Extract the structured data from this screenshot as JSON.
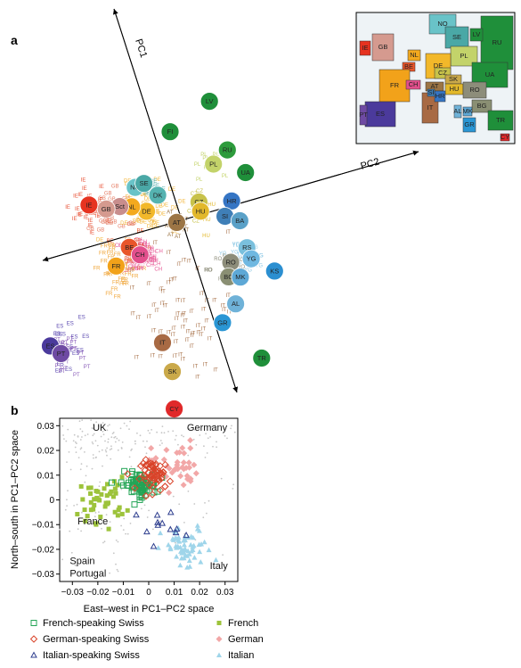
{
  "panels": {
    "a_letter": "a",
    "b_letter": "b"
  },
  "colors": {
    "french": "#9dc33b",
    "german": "#f2a7a7",
    "italian": "#9fd5ea",
    "french_swiss": "#23a455",
    "german_swiss": "#d9442a",
    "italian_swiss": "#2f3f8f",
    "uk": "#b5b5b5",
    "spain_portugal": "#b5b5b5"
  },
  "chart_data": [
    {
      "type": "scatter",
      "title": "",
      "axes": [
        {
          "label": "PC1"
        },
        {
          "label": "PC2"
        }
      ],
      "countries": [
        {
          "code": "LV",
          "color": "#1f8f3a",
          "pos": [
            20,
            -40
          ]
        },
        {
          "code": "FI",
          "color": "#1f8f3a",
          "pos": [
            1,
            -30
          ]
        },
        {
          "code": "RU",
          "color": "#2d9b3c",
          "pos": [
            24,
            -18
          ]
        },
        {
          "code": "PL",
          "color": "#c3d36a",
          "pos": [
            17,
            -13
          ]
        },
        {
          "code": "UA",
          "color": "#1f8f3a",
          "pos": [
            30,
            -7
          ]
        },
        {
          "code": "NO",
          "color": "#69c3c8",
          "pos": [
            -18,
            -9
          ]
        },
        {
          "code": "SE",
          "color": "#4aa8a6",
          "pos": [
            -14,
            -10
          ]
        },
        {
          "code": "DK",
          "color": "#55b3b0",
          "pos": [
            -9,
            -4
          ]
        },
        {
          "code": "CZ",
          "color": "#c8c24a",
          "pos": [
            8,
            2
          ]
        },
        {
          "code": "HU",
          "color": "#e2b82b",
          "pos": [
            8,
            6
          ]
        },
        {
          "code": "HR",
          "color": "#3575c4",
          "pos": [
            22,
            4
          ]
        },
        {
          "code": "SI",
          "color": "#3f7fb7",
          "pos": [
            18,
            10
          ]
        },
        {
          "code": "BA",
          "color": "#5aa1c8",
          "pos": [
            24,
            13
          ]
        },
        {
          "code": "RS",
          "color": "#7ac0dd",
          "pos": [
            25,
            25
          ]
        },
        {
          "code": "YG",
          "color": "#6fb8e1",
          "pos": [
            26,
            30
          ]
        },
        {
          "code": "RO",
          "color": "#8d8d7a",
          "pos": [
            17,
            30
          ]
        },
        {
          "code": "BG",
          "color": "#8a8f73",
          "pos": [
            15,
            36
          ]
        },
        {
          "code": "MK",
          "color": "#5da8d6",
          "pos": [
            20,
            37
          ]
        },
        {
          "code": "KS",
          "color": "#2b8fd1",
          "pos": [
            35,
            37
          ]
        },
        {
          "code": "AL",
          "color": "#6fb2d8",
          "pos": [
            16,
            48
          ]
        },
        {
          "code": "GR",
          "color": "#2a96d4",
          "pos": [
            9,
            55
          ]
        },
        {
          "code": "TR",
          "color": "#1f8f3a",
          "pos": [
            23,
            73
          ]
        },
        {
          "code": "CY",
          "color": "#e0292a",
          "pos": [
            -18,
            88
          ]
        },
        {
          "code": "SK",
          "color": "#caa94a",
          "pos": [
            -16,
            72
          ]
        },
        {
          "code": "IT",
          "color": "#a86a44",
          "pos": [
            -18,
            59
          ]
        },
        {
          "code": "AT",
          "color": "#9c7545",
          "pos": [
            -3,
            9
          ]
        },
        {
          "code": "DE",
          "color": "#f2b82a",
          "pos": [
            -15,
            2
          ]
        },
        {
          "code": "NL",
          "color": "#f3a91e",
          "pos": [
            -21,
            -1
          ]
        },
        {
          "code": "Sct",
          "color": "#c88d8c",
          "pos": [
            -26,
            -2
          ]
        },
        {
          "code": "GB",
          "color": "#d59a8f",
          "pos": [
            -32,
            -2
          ]
        },
        {
          "code": "IE",
          "color": "#e63320",
          "pos": [
            -39,
            -5
          ]
        },
        {
          "code": "BE",
          "color": "#e8552a",
          "pos": [
            -25,
            16
          ]
        },
        {
          "code": "CH",
          "color": "#e24f8c",
          "pos": [
            -21,
            20
          ]
        },
        {
          "code": "FR",
          "color": "#f2a21a",
          "pos": [
            -32,
            23
          ]
        },
        {
          "code": "ES",
          "color": "#4b3a9c",
          "pos": [
            -66,
            52
          ]
        },
        {
          "code": "PT",
          "color": "#6e4aa3",
          "pos": [
            -62,
            56
          ]
        }
      ],
      "point_label_groups": [
        {
          "code": "IE",
          "color": "#e8553a",
          "center": [
            -38,
            -3
          ],
          "spread": 9,
          "count": 30
        },
        {
          "code": "GB",
          "color": "#e57e66",
          "center": [
            -30,
            -1
          ],
          "spread": 9,
          "count": 30
        },
        {
          "code": "FR",
          "color": "#f0a63a",
          "center": [
            -30,
            21
          ],
          "spread": 11,
          "count": 45
        },
        {
          "code": "CH",
          "color": "#e75a97",
          "center": [
            -21,
            21
          ],
          "spread": 8,
          "count": 50
        },
        {
          "code": "DE",
          "color": "#f3b83f",
          "center": [
            -14,
            3
          ],
          "spread": 12,
          "count": 35
        },
        {
          "code": "ES",
          "color": "#5b49b0",
          "center": [
            -64,
            52
          ],
          "spread": 9,
          "count": 45
        },
        {
          "code": "PT",
          "color": "#8a5db8",
          "center": [
            -61,
            56
          ],
          "spread": 8,
          "count": 30
        },
        {
          "code": "IT",
          "color": "#a8724a",
          "center": [
            -9,
            48
          ],
          "spread": 22,
          "count": 70
        },
        {
          "code": "YG",
          "color": "#8fc9e5",
          "center": [
            23,
            29
          ],
          "spread": 10,
          "count": 20
        },
        {
          "code": "RO",
          "color": "#8d8d7a",
          "center": [
            16,
            32
          ],
          "spread": 8,
          "count": 12
        },
        {
          "code": "HU",
          "color": "#e2b82b",
          "center": [
            10,
            6
          ],
          "spread": 6,
          "count": 8
        },
        {
          "code": "CZ",
          "color": "#c8c24a",
          "center": [
            6,
            3
          ],
          "spread": 6,
          "count": 8
        },
        {
          "code": "PL",
          "color": "#c3d36a",
          "center": [
            14,
            -14
          ],
          "spread": 8,
          "count": 8
        },
        {
          "code": "SE",
          "color": "#4aa8a6",
          "center": [
            -12,
            -9
          ],
          "spread": 6,
          "count": 8
        },
        {
          "code": "AT",
          "color": "#9c7545",
          "center": [
            -2,
            9
          ],
          "spread": 6,
          "count": 10
        },
        {
          "code": "BE",
          "color": "#e8552a",
          "center": [
            -24,
            15
          ],
          "spread": 6,
          "count": 10
        }
      ],
      "inset_map": [
        {
          "code": "RU",
          "color": "#1f8f3a"
        },
        {
          "code": "NO",
          "color": "#69c3c8"
        },
        {
          "code": "SE",
          "color": "#4aa8a6"
        },
        {
          "code": "LV",
          "color": "#1f8f3a"
        },
        {
          "code": "PL",
          "color": "#c3d36a"
        },
        {
          "code": "UA",
          "color": "#1f8f3a"
        },
        {
          "code": "DE",
          "color": "#f2b82a"
        },
        {
          "code": "GB",
          "color": "#d59a8f"
        },
        {
          "code": "NL",
          "color": "#f3a91e"
        },
        {
          "code": "BE",
          "color": "#e8552a"
        },
        {
          "code": "FR",
          "color": "#f2a21a"
        },
        {
          "code": "CH",
          "color": "#e24f8c"
        },
        {
          "code": "AT",
          "color": "#9c7545"
        },
        {
          "code": "CZ",
          "color": "#c8c24a"
        },
        {
          "code": "SK",
          "color": "#caa94a"
        },
        {
          "code": "HU",
          "color": "#e2b82b"
        },
        {
          "code": "RO",
          "color": "#8d8d7a"
        },
        {
          "code": "BG",
          "color": "#8a8f73"
        },
        {
          "code": "IT",
          "color": "#a86a44"
        },
        {
          "code": "ES",
          "color": "#4b3a9c"
        },
        {
          "code": "PT",
          "color": "#6e4aa3"
        },
        {
          "code": "TR",
          "color": "#1f8f3a"
        },
        {
          "code": "MK",
          "color": "#5da8d6"
        },
        {
          "code": "GR",
          "color": "#2a96d4"
        },
        {
          "code": "AL",
          "color": "#6fb2d8"
        },
        {
          "code": "HR",
          "color": "#3575c4"
        },
        {
          "code": "SI",
          "color": "#3f7fb7"
        },
        {
          "code": "IE",
          "color": "#e63320"
        },
        {
          "code": "CY",
          "color": "#e0292a"
        }
      ]
    },
    {
      "type": "scatter",
      "title": "",
      "xlabel": "East–west in PC1–PC2 space",
      "ylabel": "North–south in PC1–PC2 space",
      "xlim": [
        -0.035,
        0.035
      ],
      "ylim": [
        -0.033,
        0.033
      ],
      "xticks": [
        -0.03,
        -0.02,
        -0.01,
        0,
        0.01,
        0.02,
        0.03
      ],
      "xtick_labels": [
        "−0.03",
        "−0.02",
        "−0.01",
        "0",
        "0.01",
        "0.02",
        "0.03"
      ],
      "yticks": [
        0.03,
        0.02,
        0.01,
        0,
        -0.01,
        -0.02,
        -0.03
      ],
      "ytick_labels": [
        "0.03",
        "0.02",
        "0.01",
        "0",
        "−0.01",
        "−0.02",
        "−0.03"
      ],
      "region_labels": [
        {
          "text": "UK",
          "x": -0.022,
          "y": 0.028
        },
        {
          "text": "Germany",
          "x": 0.015,
          "y": 0.028
        },
        {
          "text": "France",
          "x": -0.028,
          "y": -0.01
        },
        {
          "text": "Spain",
          "x": -0.031,
          "y": -0.026
        },
        {
          "text": "Portugal",
          "x": -0.031,
          "y": -0.031
        },
        {
          "text": "Italy",
          "x": 0.024,
          "y": -0.028
        }
      ],
      "series": [
        {
          "name": "French-speaking Swiss",
          "marker": "open-square",
          "color": "#23a455",
          "center": [
            -0.004,
            0.006
          ],
          "spread": [
            0.007,
            0.005
          ],
          "count": 70
        },
        {
          "name": "German-speaking Swiss",
          "marker": "open-diamond",
          "color": "#d9442a",
          "center": [
            0.003,
            0.01
          ],
          "spread": [
            0.006,
            0.006
          ],
          "count": 60
        },
        {
          "name": "Italian-speaking Swiss",
          "marker": "open-triangle",
          "color": "#2f3f8f",
          "center": [
            0.003,
            -0.01
          ],
          "spread": [
            0.009,
            0.008
          ],
          "count": 12
        },
        {
          "name": "French",
          "marker": "filled-square",
          "color": "#9dc33b",
          "center": [
            -0.018,
            0.0
          ],
          "spread": [
            0.009,
            0.009
          ],
          "count": 45
        },
        {
          "name": "German",
          "marker": "filled-diamond",
          "color": "#f2a7a7",
          "center": [
            0.01,
            0.014
          ],
          "spread": [
            0.009,
            0.01
          ],
          "count": 40
        },
        {
          "name": "Italian",
          "marker": "filled-triangle",
          "color": "#9fd5ea",
          "center": [
            0.015,
            -0.02
          ],
          "spread": [
            0.01,
            0.009
          ],
          "count": 60
        }
      ],
      "background": {
        "name": "",
        "color": "#c6c6c6",
        "count": 260
      }
    }
  ]
}
